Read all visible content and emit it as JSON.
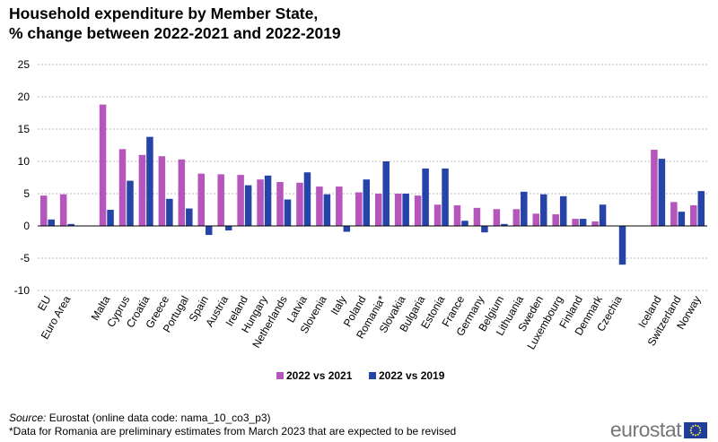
{
  "title_line1": "Household expenditure by Member State,",
  "title_line2": "% change between 2022-2021 and 2022-2019",
  "source_label": "Source:",
  "source_text": " Eurostat (online data code: nama_10_co3_p3)",
  "footnote": "*Data for Romania are preliminary estimates from March 2023 that are expected to be revised",
  "brand": "eurostat",
  "chart_data": {
    "type": "bar",
    "title": "Household expenditure by Member State, % change between 2022-2021 and 2022-2019",
    "ylim": [
      -10,
      25
    ],
    "yticks": [
      -10,
      -5,
      0,
      5,
      10,
      15,
      20,
      25
    ],
    "grid": true,
    "legend_position": "bottom",
    "categories": [
      "EU",
      "Euro Area",
      "",
      "Malta",
      "Cyprus",
      "Croatia",
      "Greece",
      "Portugal",
      "Spain",
      "Austria",
      "Ireland",
      "Hungary",
      "Netherlands",
      "Latvia",
      "Slovenia",
      "Italy",
      "Poland",
      "Romania*",
      "Slovakia",
      "Bulgaria",
      "Estonia",
      "France",
      "Germany",
      "Belgium",
      "Lithuania",
      "Sweden",
      "Luxembourg",
      "Finland",
      "Denmark",
      "Czechia",
      "",
      "Iceland",
      "Switzerland",
      "Norway"
    ],
    "series": [
      {
        "name": "2022 vs 2021",
        "color": "#b656bd",
        "values": [
          4.7,
          4.9,
          null,
          18.8,
          11.9,
          11.0,
          10.8,
          10.3,
          8.1,
          8.0,
          7.9,
          7.2,
          6.8,
          6.7,
          6.1,
          6.1,
          5.2,
          5.0,
          5.0,
          4.7,
          3.3,
          3.2,
          2.8,
          2.6,
          2.6,
          1.9,
          1.8,
          1.1,
          0.7,
          0.0,
          null,
          11.8,
          3.7,
          3.2
        ]
      },
      {
        "name": "2022 vs 2019",
        "color": "#2644a7",
        "values": [
          1.0,
          0.3,
          null,
          2.5,
          7.0,
          13.8,
          4.2,
          2.7,
          -1.4,
          -0.7,
          6.3,
          7.8,
          4.1,
          8.3,
          4.9,
          -0.9,
          7.2,
          10.0,
          5.0,
          8.9,
          8.9,
          0.8,
          -1.0,
          0.3,
          5.3,
          4.9,
          4.6,
          1.1,
          3.3,
          -6.0,
          null,
          10.4,
          2.2,
          5.4
        ]
      }
    ]
  }
}
